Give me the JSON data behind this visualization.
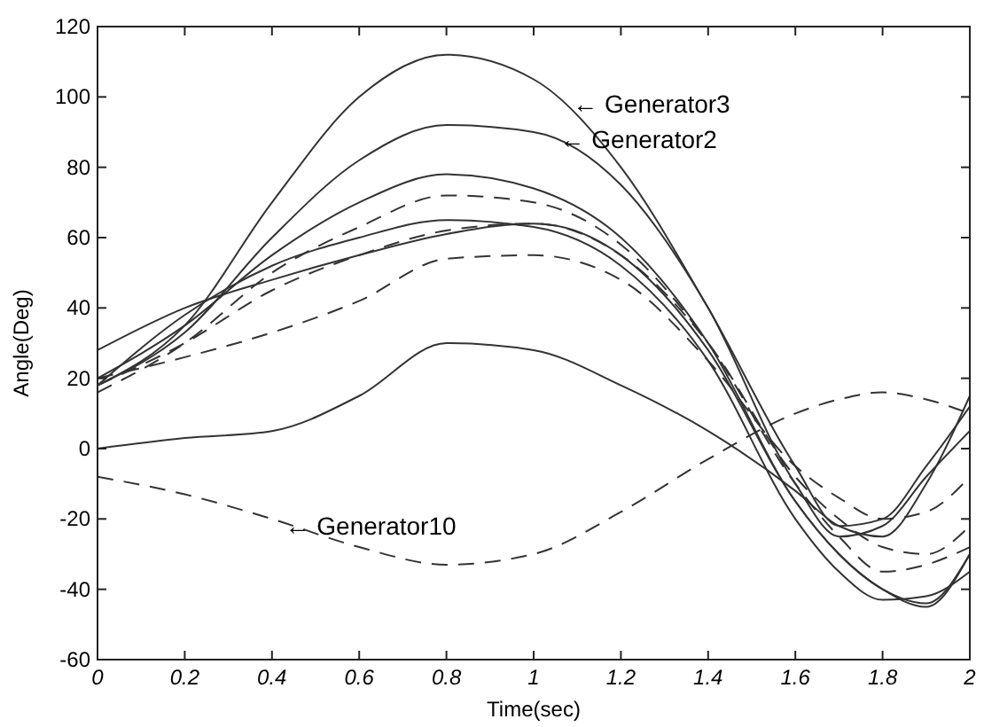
{
  "chart_data": {
    "type": "line",
    "xlabel": "Time(sec)",
    "ylabel": "Angle(Deg)",
    "xlim": [
      0,
      2
    ],
    "xticks": [
      0,
      0.2,
      0.4,
      0.6,
      0.8,
      1,
      1.2,
      1.4,
      1.6,
      1.8,
      2
    ],
    "ylim": [
      -60,
      120
    ],
    "yticks": [
      -60,
      -40,
      -20,
      0,
      20,
      40,
      60,
      80,
      100,
      120
    ],
    "grid": false,
    "x": [
      0,
      0.2,
      0.4,
      0.6,
      0.8,
      1,
      1.2,
      1.4,
      1.6,
      1.7,
      1.8,
      1.9,
      2
    ],
    "series": [
      {
        "color": "#333333",
        "line_style": "solid",
        "values": [
          18,
          35,
          70,
          100,
          112,
          105,
          80,
          40,
          -5,
          -22,
          -20,
          -5,
          12
        ]
      },
      {
        "color": "#333333",
        "line_style": "solid",
        "values": [
          18,
          33,
          60,
          82,
          92,
          90,
          75,
          40,
          -10,
          -25,
          -22,
          -8,
          5
        ]
      },
      {
        "color": "#333333",
        "line_style": "solid",
        "values": [
          20,
          35,
          55,
          70,
          78,
          74,
          60,
          30,
          -15,
          -30,
          -40,
          -44,
          -30
        ]
      },
      {
        "color": "#333333",
        "line_style": "solid",
        "values": [
          18,
          38,
          52,
          60,
          65,
          63,
          52,
          25,
          -20,
          -35,
          -43,
          -42,
          -35
        ]
      },
      {
        "color": "#333333",
        "line_style": "solid",
        "values": [
          28,
          40,
          48,
          55,
          61,
          64,
          55,
          28,
          -15,
          -30,
          -40,
          -45,
          -30
        ]
      },
      {
        "color": "#333333",
        "line_style": "dashed",
        "values": [
          16,
          30,
          50,
          63,
          72,
          70,
          58,
          30,
          -10,
          -25,
          -35,
          -33,
          -28
        ]
      },
      {
        "color": "#333333",
        "line_style": "dashed",
        "values": [
          20,
          26,
          33,
          42,
          54,
          55,
          48,
          25,
          -5,
          -14,
          -20,
          -18,
          -8
        ]
      },
      {
        "color": "#333333",
        "line_style": "dashed",
        "values": [
          18,
          30,
          45,
          55,
          62,
          64,
          55,
          30,
          -8,
          -20,
          -28,
          -30,
          -22
        ]
      },
      {
        "color": "#333333",
        "line_style": "solid",
        "values": [
          0,
          3,
          5,
          15,
          30,
          28,
          18,
          5,
          -12,
          -22,
          -25,
          -10,
          15
        ]
      },
      {
        "color": "#333333",
        "line_style": "dashed",
        "values": [
          -8,
          -13,
          -20,
          -28,
          -33,
          -30,
          -18,
          -3,
          10,
          14,
          16,
          14,
          10
        ]
      }
    ],
    "annotations": [
      {
        "text": "← Generator3",
        "x": 1.09,
        "y": 98
      },
      {
        "text": "← Generator2",
        "x": 1.06,
        "y": 88
      },
      {
        "text": "← Generator10",
        "x": 0.43,
        "y": -22
      }
    ]
  }
}
